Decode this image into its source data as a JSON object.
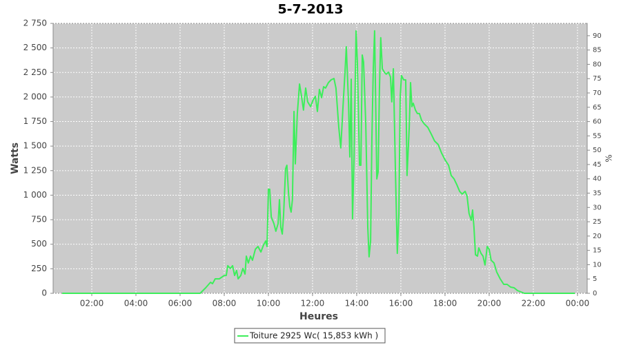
{
  "chart_data": {
    "type": "line",
    "title": "5-7-2013",
    "x_label": "Heures",
    "y_label": "Watts",
    "y2_label": "%",
    "xlim": [
      0.25,
      24.44
    ],
    "xticks": [
      {
        "value": 2,
        "label": "02:00"
      },
      {
        "value": 4,
        "label": "04:00"
      },
      {
        "value": 6,
        "label": "06:00"
      },
      {
        "value": 8,
        "label": "08:00"
      },
      {
        "value": 10,
        "label": "10:00"
      },
      {
        "value": 12,
        "label": "12:00"
      },
      {
        "value": 14,
        "label": "14:00"
      },
      {
        "value": 16,
        "label": "16:00"
      },
      {
        "value": 18,
        "label": "18:00"
      },
      {
        "value": 20,
        "label": "20:00"
      },
      {
        "value": 22,
        "label": "22:00"
      },
      {
        "value": 24,
        "label": "00:00"
      }
    ],
    "ylim": [
      0,
      2750
    ],
    "yticks": [
      0,
      250,
      500,
      750,
      {
        "value": 1000,
        "label": "1 000"
      },
      {
        "value": 1250,
        "label": "1 250"
      },
      {
        "value": 1500,
        "label": "1 500"
      },
      {
        "value": 1750,
        "label": "1 750"
      },
      {
        "value": 2000,
        "label": "2 000"
      },
      {
        "value": 2250,
        "label": "2 250"
      },
      {
        "value": 2500,
        "label": "2 500"
      },
      {
        "value": 2750,
        "label": "2 750"
      }
    ],
    "y2lim": [
      0,
      94.3
    ],
    "y2ticks": [
      0,
      5,
      10,
      15,
      20,
      25,
      30,
      35,
      40,
      45,
      50,
      55,
      60,
      65,
      70,
      75,
      80,
      85,
      90
    ],
    "grid": true,
    "legend": "bottom",
    "x": [
      0.66,
      6.91,
      7.16,
      7.38,
      7.47,
      7.59,
      7.78,
      8.0,
      8.09,
      8.16,
      8.28,
      8.38,
      8.47,
      8.56,
      8.63,
      8.75,
      8.84,
      8.94,
      9.0,
      9.09,
      9.19,
      9.28,
      9.41,
      9.53,
      9.66,
      9.78,
      9.88,
      9.94,
      10.0,
      10.06,
      10.13,
      10.25,
      10.34,
      10.44,
      10.5,
      10.56,
      10.63,
      10.69,
      10.78,
      10.84,
      10.91,
      10.97,
      11.03,
      11.09,
      11.16,
      11.22,
      11.31,
      11.41,
      11.5,
      11.59,
      11.69,
      11.78,
      11.91,
      12.03,
      12.13,
      12.22,
      12.31,
      12.41,
      12.5,
      12.59,
      12.72,
      12.84,
      12.97,
      13.06,
      13.19,
      13.28,
      13.38,
      13.47,
      13.53,
      13.63,
      13.69,
      13.75,
      13.81,
      13.88,
      13.97,
      14.03,
      14.13,
      14.19,
      14.25,
      14.31,
      14.41,
      14.5,
      14.56,
      14.63,
      14.69,
      14.75,
      14.81,
      14.91,
      14.97,
      15.03,
      15.09,
      15.16,
      15.25,
      15.34,
      15.44,
      15.53,
      15.59,
      15.66,
      15.75,
      15.84,
      15.91,
      15.97,
      16.03,
      16.13,
      16.22,
      16.28,
      16.38,
      16.44,
      16.5,
      16.56,
      16.66,
      16.75,
      16.84,
      16.94,
      17.06,
      17.22,
      17.38,
      17.53,
      17.69,
      17.84,
      18.0,
      18.16,
      18.28,
      18.41,
      18.53,
      18.66,
      18.78,
      18.91,
      19.0,
      19.09,
      19.19,
      19.25,
      19.31,
      19.38,
      19.47,
      19.53,
      19.63,
      19.72,
      19.81,
      19.91,
      20.0,
      20.09,
      20.22,
      20.34,
      20.5,
      20.66,
      20.81,
      20.97,
      21.13,
      21.28,
      21.44,
      21.59,
      23.88
    ],
    "series": [
      {
        "name": "Toiture 2925 Wc( 15,853 kWh )",
        "color": "#3cee5a",
        "values": [
          0,
          0,
          56,
          112,
          98,
          147,
          147,
          182,
          182,
          281,
          253,
          281,
          182,
          232,
          147,
          182,
          253,
          196,
          379,
          309,
          379,
          337,
          449,
          477,
          421,
          491,
          533,
          477,
          1060,
          1060,
          779,
          709,
          632,
          709,
          954,
          674,
          604,
          800,
          1270,
          1305,
          1025,
          884,
          828,
          954,
          1853,
          1319,
          1832,
          2133,
          2007,
          1867,
          2091,
          1951,
          1902,
          1972,
          2007,
          1853,
          2077,
          1993,
          2105,
          2091,
          2147,
          2175,
          2189,
          2091,
          1691,
          1481,
          1902,
          2253,
          2512,
          1937,
          1389,
          2182,
          758,
          1375,
          2674,
          2358,
          1305,
          1305,
          2428,
          2358,
          1726,
          674,
          372,
          533,
          1586,
          2288,
          2674,
          1165,
          1235,
          2077,
          2604,
          2288,
          2253,
          2232,
          2253,
          2204,
          1951,
          2288,
          1305,
          407,
          814,
          2007,
          2218,
          2175,
          2175,
          1200,
          1691,
          2147,
          1902,
          1937,
          1867,
          1832,
          1832,
          1762,
          1726,
          1691,
          1621,
          1551,
          1516,
          1432,
          1361,
          1305,
          1200,
          1165,
          1109,
          1039,
          1011,
          1039,
          989,
          814,
          744,
          849,
          674,
          393,
          379,
          463,
          407,
          379,
          288,
          477,
          449,
          337,
          309,
          218,
          147,
          91,
          91,
          63,
          56,
          28,
          14,
          0,
          0
        ]
      }
    ]
  }
}
